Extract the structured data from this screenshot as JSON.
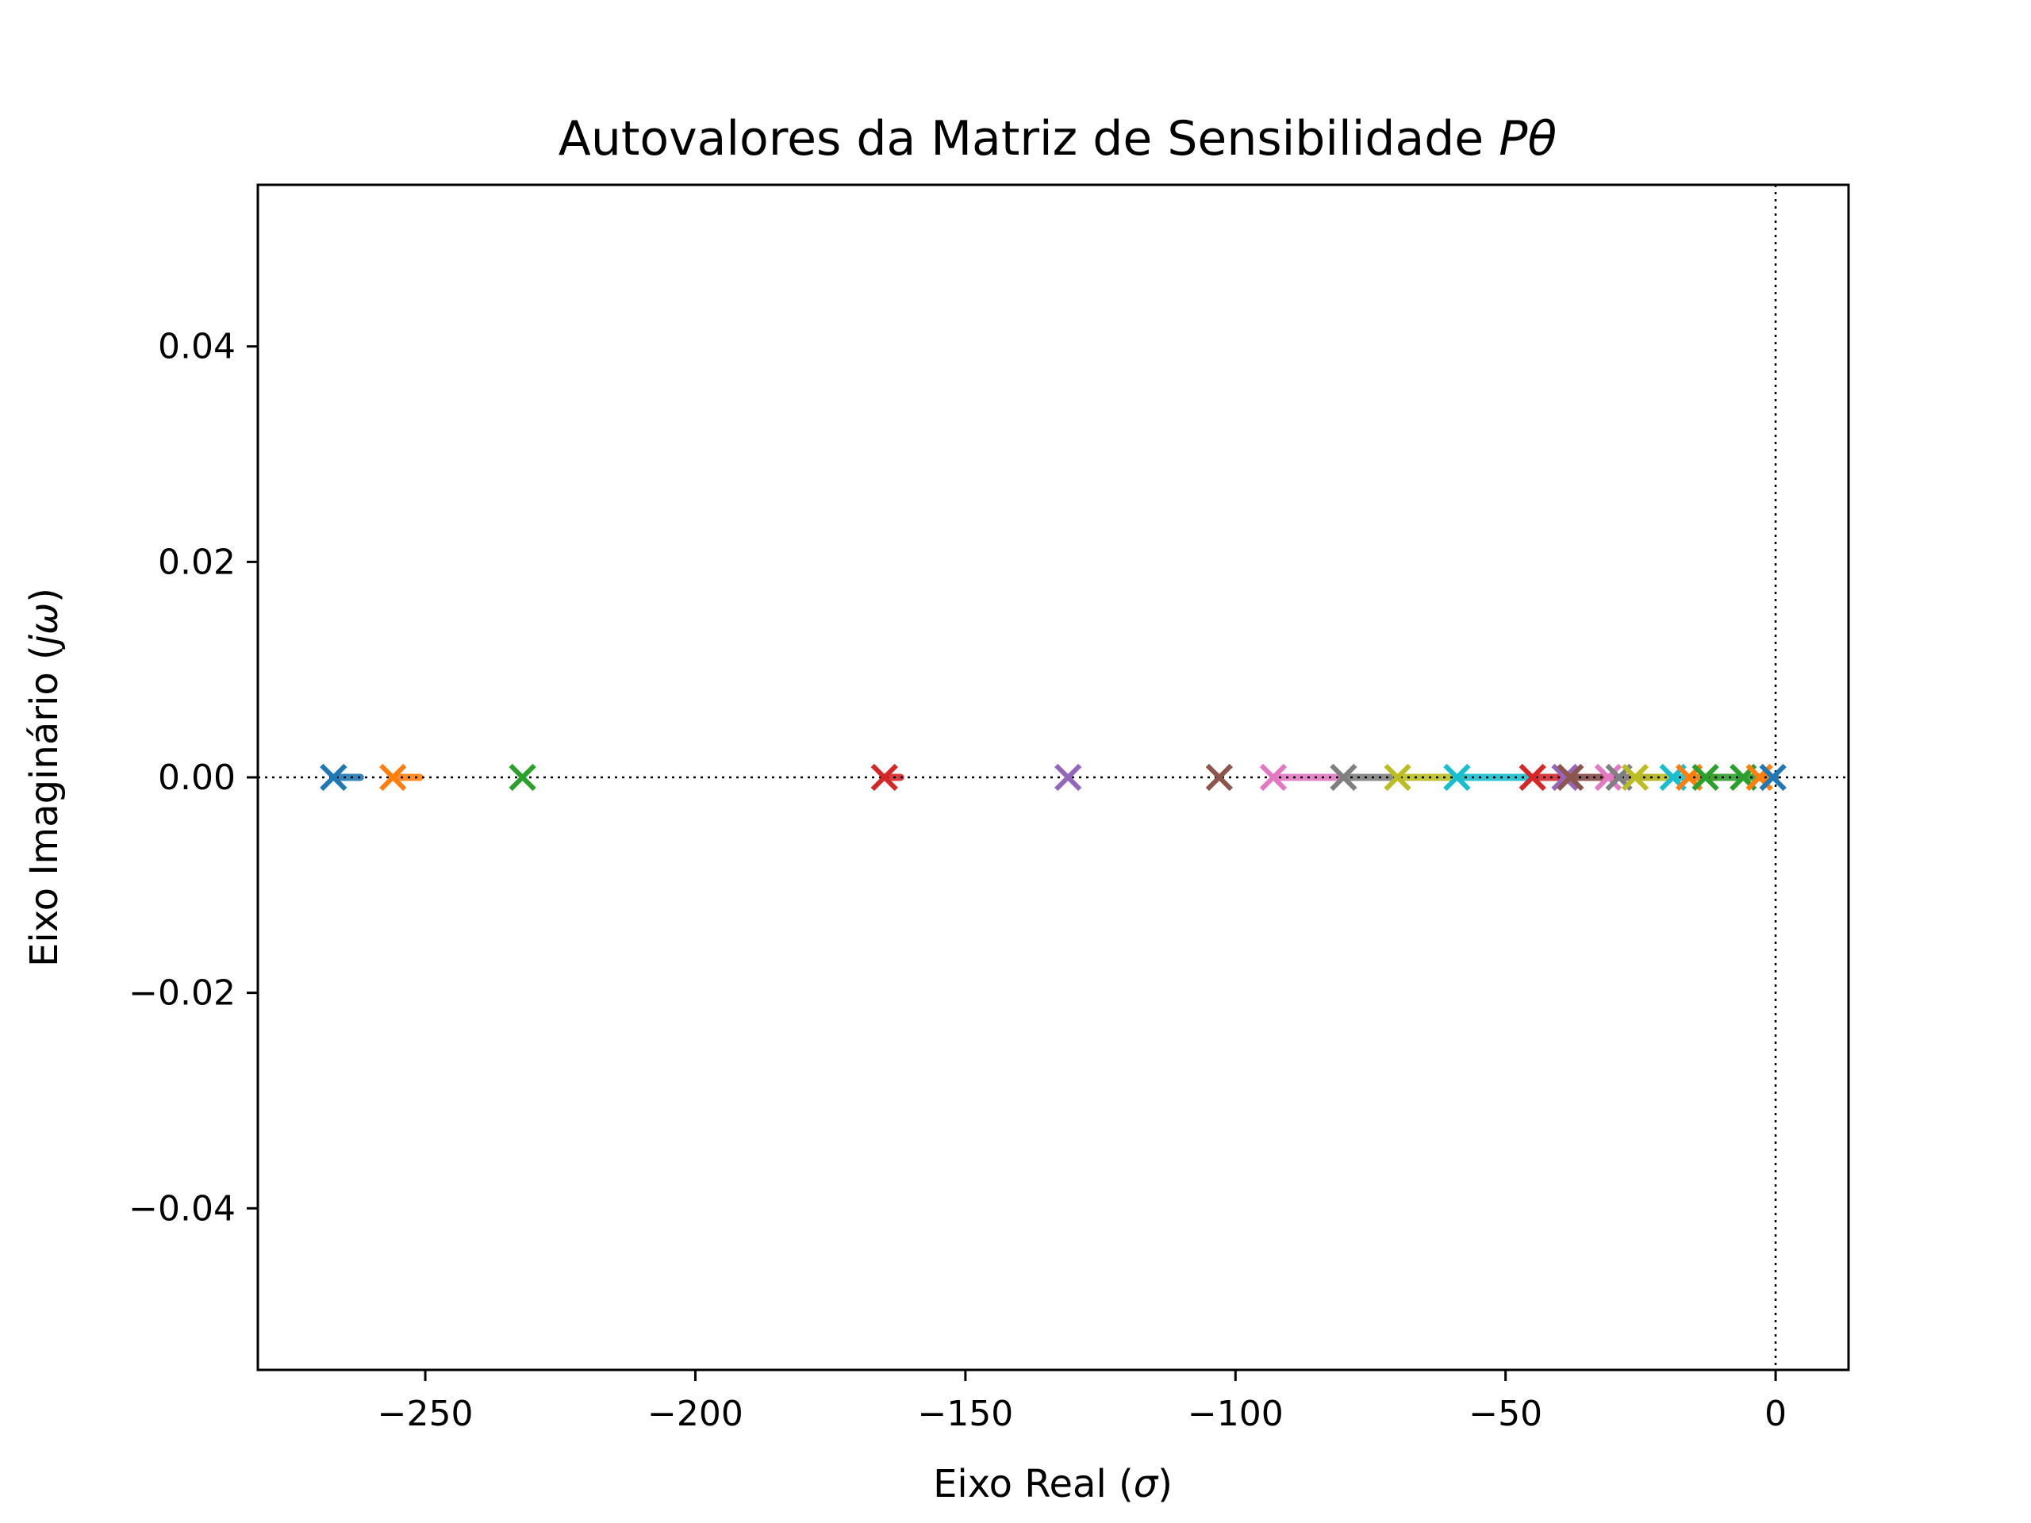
{
  "chart_data": {
    "type": "scatter",
    "title": "Autovalores da Matriz de Sensibilidade ",
    "title_math": "Pθ",
    "xlabel": "Eixo Real (",
    "xlabel_math": "σ",
    "xlabel_close": ")",
    "ylabel": "Eixo Imaginário (",
    "ylabel_math": "jω",
    "ylabel_close": ")",
    "xlim": [
      -281,
      13.5
    ],
    "ylim": [
      -0.055,
      0.055
    ],
    "xticks": [
      -250,
      -200,
      -150,
      -100,
      -50,
      0
    ],
    "xtick_labels": [
      "−250",
      "−200",
      "−150",
      "−100",
      "−50",
      "0"
    ],
    "yticks": [
      0.04,
      0.02,
      0.0,
      -0.02,
      -0.04
    ],
    "ytick_labels": [
      "0.04",
      "0.02",
      "0.00",
      "−0.02",
      "−0.04"
    ],
    "reference_lines": {
      "horizontal_y": 0,
      "vertical_x": 0
    },
    "grid": false,
    "legend": "none",
    "marker": "x",
    "series": [
      {
        "color": "#1f77b4",
        "x": [
          -267,
          -262
        ]
      },
      {
        "color": "#ff7f0e",
        "x": [
          -256,
          -251
        ]
      },
      {
        "color": "#2ca02c",
        "x": [
          -232
        ]
      },
      {
        "color": "#d62728",
        "x": [
          -165,
          -162
        ]
      },
      {
        "color": "#9467bd",
        "x": [
          -131
        ]
      },
      {
        "color": "#8c564b",
        "x": [
          -103
        ]
      },
      {
        "color": "#e377c2",
        "x": [
          -93,
          -80
        ]
      },
      {
        "color": "#7f7f7f",
        "x": [
          -80,
          -70
        ]
      },
      {
        "color": "#bcbd22",
        "x": [
          -70,
          -58
        ]
      },
      {
        "color": "#17becf",
        "x": [
          -59,
          -45
        ]
      },
      {
        "color": "#d62728",
        "x": [
          -45,
          -38
        ]
      },
      {
        "color": "#9467bd",
        "x": [
          -39,
          -30
        ]
      },
      {
        "color": "#8c564b",
        "x": [
          -38,
          -30
        ]
      },
      {
        "color": "#e377c2",
        "x": [
          -31,
          -24
        ]
      },
      {
        "color": "#7f7f7f",
        "x": [
          -29,
          -22
        ]
      },
      {
        "color": "#bcbd22",
        "x": [
          -26,
          -19
        ]
      },
      {
        "color": "#17becf",
        "x": [
          -19,
          -14
        ]
      },
      {
        "color": "#ff7f0e",
        "x": [
          -16,
          -11
        ]
      },
      {
        "color": "#2ca02c",
        "x": [
          -13,
          -6
        ]
      },
      {
        "color": "#2ca02c",
        "x": [
          -6,
          -2
        ]
      },
      {
        "color": "#ff7f0e",
        "x": [
          -3,
          0
        ]
      },
      {
        "color": "#1f77b4",
        "x": [
          -0.5,
          0
        ]
      }
    ]
  }
}
